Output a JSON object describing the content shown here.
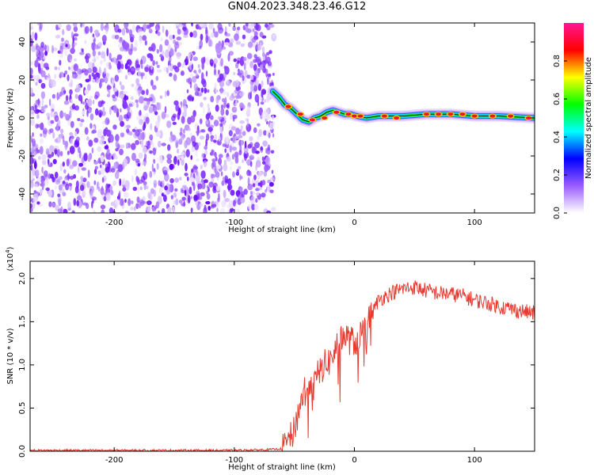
{
  "page_title": "GN04.2023.348.23.46.G12",
  "chart_data": [
    {
      "type": "heatmap",
      "title": "",
      "xlabel": "Height of straight line (km)",
      "ylabel": "Frequency (Hz)",
      "xlim": [
        -270,
        150
      ],
      "ylim": [
        -50,
        50
      ],
      "x_ticks": [
        -200,
        -100,
        0,
        100
      ],
      "y_ticks": [
        -40,
        -20,
        0,
        20,
        40
      ],
      "noise_region_x": [
        -270,
        -67
      ],
      "ridge": {
        "x": [
          -68,
          -63,
          -58,
          -53,
          -48,
          -43,
          -38,
          -33,
          -28,
          -23,
          -18,
          -13,
          -8,
          -3,
          2,
          10,
          20,
          40,
          60,
          80,
          100,
          120,
          150
        ],
        "y": [
          14,
          11,
          7,
          5,
          2,
          -1,
          -2,
          0,
          1,
          3,
          4,
          3,
          2,
          2,
          1,
          0,
          1,
          1,
          2,
          2,
          1,
          1,
          0
        ]
      },
      "hot_spots": {
        "x": [
          -55,
          -45,
          -35,
          -25,
          -15,
          -5,
          0,
          5,
          25,
          35,
          60,
          70,
          80,
          90,
          100,
          115,
          130,
          145
        ],
        "y": [
          6,
          2,
          -1,
          0,
          3,
          2,
          1,
          1,
          1,
          0,
          2,
          2,
          2,
          2,
          1,
          1,
          1,
          0
        ]
      },
      "colorbar": {
        "label": "Normalized spectral amplitude",
        "range": [
          0.0,
          1.0
        ],
        "ticks": [
          "0.0",
          "0.2",
          "0.4",
          "0.6",
          "0.8"
        ],
        "colors": [
          "#ffffff",
          "#9b5cff",
          "#0000ff",
          "#00ffff",
          "#00ff00",
          "#ffff00",
          "#ff0000",
          "#ff1493"
        ]
      }
    },
    {
      "type": "line",
      "title": "",
      "xlabel": "Height of straight line (km)",
      "ylabel": "SNR (10 * v/v)",
      "y_multiplier": "(x10",
      "y_multiplier_exp": "4",
      "y_multiplier_close": ")",
      "xlim": [
        -270,
        150
      ],
      "ylim": [
        0,
        2.2
      ],
      "x_ticks": [
        -200,
        -100,
        0,
        100
      ],
      "y_ticks": [
        "0.0",
        "0.5",
        "1.0",
        "1.5",
        "2.0"
      ],
      "color": "#e83a2e",
      "x": [
        -270,
        -200,
        -100,
        -70,
        -60,
        -55,
        -50,
        -45,
        -40,
        -35,
        -30,
        -25,
        -20,
        -15,
        -10,
        -5,
        0,
        5,
        10,
        15,
        20,
        30,
        40,
        50,
        60,
        70,
        80,
        90,
        100,
        110,
        120,
        130,
        140,
        150
      ],
      "y": [
        0.01,
        0.01,
        0.01,
        0.02,
        0.03,
        0.1,
        0.25,
        0.55,
        0.8,
        0.7,
        0.9,
        1.0,
        1.05,
        1.2,
        1.35,
        1.3,
        1.25,
        1.35,
        1.45,
        1.6,
        1.75,
        1.83,
        1.88,
        1.9,
        1.86,
        1.83,
        1.82,
        1.8,
        1.75,
        1.72,
        1.68,
        1.65,
        1.62,
        1.6
      ]
    }
  ]
}
